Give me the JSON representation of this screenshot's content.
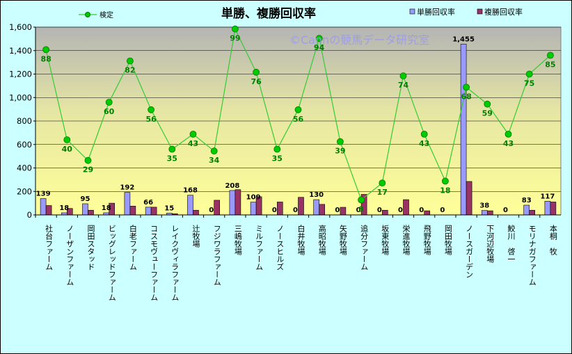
{
  "chart_data": {
    "type": "bar",
    "title": "単勝、複勝回収率",
    "watermark": "©Cannの競馬データ研究室",
    "categories": [
      "社台ファーム",
      "ノーザンファーム",
      "岡田スタッド",
      "ビッグレッドファーム",
      "白老ファーム",
      "コスモヴューファーム",
      "レイクヴィラファーム",
      "辻牧場",
      "フジワラファーム",
      "三嶋牧場",
      "ミルファーム",
      "ノースヒルズ",
      "白井牧場",
      "高昭牧場",
      "矢野牧場",
      "追分ファーム",
      "坂東牧場",
      "栄進牧場",
      "飛野牧場",
      "岡田牧場",
      "ノースガーデン",
      "下河辺牧場",
      "鮫川　啓一",
      "モリナガファーム",
      "本桐　牧"
    ],
    "series": [
      {
        "name": "単勝回収率",
        "type": "bar",
        "color": "#9999ff",
        "values": [
          139,
          18,
          95,
          18,
          192,
          66,
          15,
          168,
          0,
          208,
          109,
          0,
          0,
          130,
          0,
          0,
          0,
          0,
          0,
          0,
          1455,
          38,
          0,
          83,
          117
        ]
      },
      {
        "name": "複勝回収率",
        "type": "bar",
        "color": "#993366",
        "values": [
          80,
          55,
          40,
          100,
          75,
          66,
          10,
          40,
          125,
          215,
          155,
          110,
          150,
          90,
          65,
          175,
          40,
          130,
          35,
          0,
          285,
          35,
          0,
          40,
          110
        ]
      },
      {
        "name": "検定",
        "type": "line",
        "axis": "secondary",
        "color": "#00cc00",
        "values": [
          88,
          40,
          29,
          60,
          82,
          56,
          35,
          43,
          34,
          99,
          76,
          35,
          56,
          94,
          39,
          8,
          17,
          74,
          43,
          18,
          68,
          59,
          43,
          75,
          85
        ]
      }
    ],
    "bar_labels": [
      "139",
      "18",
      "95",
      "18",
      "192",
      "66",
      "15",
      "168",
      "0",
      "208",
      "109",
      "0",
      "0",
      "130",
      "0",
      "0",
      "0",
      "0",
      "0",
      "0",
      "1,455",
      "38",
      "0",
      "83",
      "117"
    ],
    "ylim": [
      0,
      1600
    ],
    "yticks": [
      "0",
      "200",
      "400",
      "600",
      "800",
      "1,000",
      "1,200",
      "1,400",
      "1,600"
    ],
    "y2lim": [
      0,
      100
    ],
    "xlabel": "",
    "ylabel": "",
    "grid": true,
    "legend": "top"
  }
}
